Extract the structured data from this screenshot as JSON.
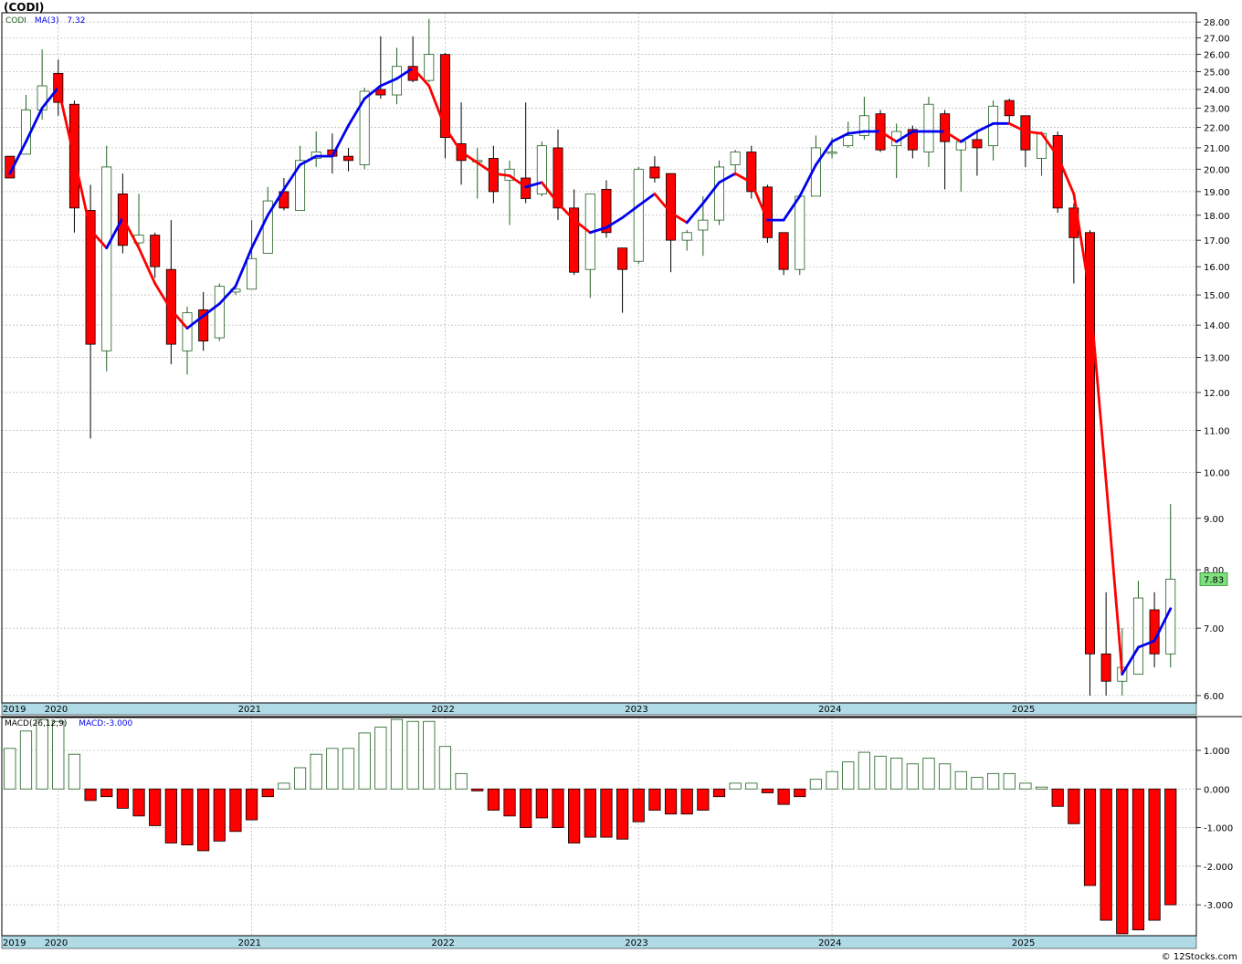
{
  "header": {
    "title": "(CODI)"
  },
  "price_legend": {
    "symbol": "CODI",
    "ma_label": "MA(3)",
    "ma_value": "7.32"
  },
  "macd_legend": {
    "label": "MACD(26,12,9)",
    "value_label": "MACD:-3.000"
  },
  "last_price_label": "7.83",
  "watermark": "© 12Stocks.com",
  "colors": {
    "up": "#1f5f1f",
    "down": "#ff0000",
    "ma_up": "#0000ee",
    "ma_down": "#ff0000",
    "axis_band": "#b0dbe6",
    "grid": "#b4b4b4",
    "last_price_box": "#7ee07e"
  },
  "chart_data": [
    {
      "type": "candlestick",
      "series_name": "CODI",
      "period": "monthly",
      "y_scale": "log",
      "ylim": [
        5.9,
        28.6
      ],
      "y_ticks": [
        "6.00",
        "7.00",
        "8.00",
        "9.00",
        "10.00",
        "11.00",
        "12.00",
        "13.00",
        "14.00",
        "15.00",
        "16.00",
        "17.00",
        "18.00",
        "19.00",
        "20.00",
        "21.00",
        "22.00",
        "23.00",
        "24.00",
        "25.00",
        "26.00",
        "27.00",
        "28.00"
      ],
      "x_labels": [
        {
          "label": "2019",
          "index": -0.4
        },
        {
          "label": "2020",
          "index": 3.0
        },
        {
          "label": "2021",
          "index": 15.0
        },
        {
          "label": "2022",
          "index": 27.0
        },
        {
          "label": "2023",
          "index": 39.0
        },
        {
          "label": "2024",
          "index": 51.0
        },
        {
          "label": "2025",
          "index": 63.0
        }
      ],
      "x_index_range": [
        -0.5,
        73.6
      ],
      "grid": true,
      "candles": [
        [
          20.6,
          19.6,
          21.1,
          21.1
        ],
        [
          20.7,
          22.9,
          23.7,
          20.7
        ],
        [
          22.9,
          24.2,
          26.3,
          22.4
        ],
        [
          24.9,
          23.3,
          25.7,
          22.6
        ],
        [
          23.2,
          18.3,
          23.4,
          17.3
        ],
        [
          18.2,
          13.4,
          19.3,
          10.8
        ],
        [
          13.2,
          20.1,
          21.1,
          12.6
        ],
        [
          18.9,
          16.8,
          19.8,
          16.5
        ],
        [
          16.9,
          17.2,
          18.9,
          16.8
        ],
        [
          17.2,
          16.0,
          17.3,
          15.6
        ],
        [
          15.9,
          13.4,
          17.8,
          12.8
        ],
        [
          13.2,
          14.4,
          14.6,
          12.5
        ],
        [
          14.5,
          13.5,
          15.1,
          13.2
        ],
        [
          13.6,
          15.3,
          15.4,
          13.5
        ],
        [
          15.1,
          15.2,
          15.4,
          15.0
        ],
        [
          15.2,
          16.3,
          17.8,
          15.2
        ],
        [
          16.5,
          18.6,
          19.2,
          16.5
        ],
        [
          19.0,
          18.3,
          19.6,
          18.2
        ],
        [
          18.2,
          20.4,
          21.1,
          18.2
        ],
        [
          20.5,
          20.8,
          21.8,
          20.1
        ],
        [
          20.9,
          20.6,
          21.7,
          19.8
        ],
        [
          20.6,
          20.4,
          21.0,
          19.9
        ],
        [
          20.2,
          23.9,
          24.1,
          20.0
        ],
        [
          24.0,
          23.7,
          27.1,
          23.5
        ],
        [
          23.7,
          25.3,
          26.4,
          23.2
        ],
        [
          25.3,
          24.5,
          27.1,
          24.4
        ],
        [
          24.5,
          26.0,
          28.2,
          24.4
        ],
        [
          26.0,
          21.5,
          26.1,
          20.5
        ],
        [
          21.2,
          20.4,
          23.3,
          19.3
        ],
        [
          20.4,
          20.4,
          21.0,
          18.7
        ],
        [
          20.5,
          19.0,
          21.1,
          18.5
        ],
        [
          19.5,
          20.0,
          20.4,
          17.6
        ],
        [
          19.6,
          18.7,
          23.3,
          18.5
        ],
        [
          18.9,
          21.1,
          21.3,
          18.8
        ],
        [
          21.0,
          18.3,
          21.9,
          17.8
        ],
        [
          18.3,
          15.8,
          19.1,
          15.7
        ],
        [
          15.9,
          18.9,
          18.9,
          14.9
        ],
        [
          19.1,
          17.3,
          19.5,
          17.1
        ],
        [
          16.7,
          15.9,
          16.7,
          14.4
        ],
        [
          16.2,
          20.0,
          20.1,
          16.1
        ],
        [
          20.1,
          19.6,
          20.6,
          19.4
        ],
        [
          19.8,
          17.0,
          19.8,
          15.8
        ],
        [
          17.0,
          17.3,
          17.4,
          16.6
        ],
        [
          17.4,
          17.8,
          18.8,
          16.4
        ],
        [
          17.8,
          20.1,
          20.4,
          17.6
        ],
        [
          20.2,
          20.8,
          20.9,
          19.7
        ],
        [
          20.8,
          19.0,
          21.1,
          18.7
        ],
        [
          19.2,
          17.1,
          19.3,
          16.9
        ],
        [
          17.3,
          15.9,
          17.3,
          15.7
        ],
        [
          15.9,
          18.8,
          18.8,
          15.7
        ],
        [
          18.8,
          21.0,
          21.6,
          18.8
        ],
        [
          20.8,
          20.8,
          21.5,
          20.5
        ],
        [
          21.1,
          21.6,
          22.3,
          21.0
        ],
        [
          21.6,
          22.6,
          23.6,
          21.4
        ],
        [
          22.7,
          20.9,
          22.9,
          20.8
        ],
        [
          21.1,
          21.8,
          22.2,
          19.6
        ],
        [
          21.9,
          20.9,
          22.1,
          20.5
        ],
        [
          20.8,
          23.2,
          23.6,
          20.1
        ],
        [
          22.7,
          21.3,
          22.9,
          19.1
        ],
        [
          20.9,
          21.3,
          21.4,
          19.0
        ],
        [
          21.4,
          21.0,
          21.8,
          19.7
        ],
        [
          21.1,
          23.1,
          23.4,
          20.4
        ],
        [
          23.4,
          22.6,
          23.5,
          22.2
        ],
        [
          22.6,
          20.9,
          22.6,
          20.1
        ],
        [
          20.5,
          21.7,
          21.8,
          19.7
        ],
        [
          21.6,
          18.3,
          21.8,
          18.1
        ],
        [
          18.3,
          17.1,
          18.5,
          15.4
        ],
        [
          17.3,
          6.6,
          17.4,
          6.0
        ],
        [
          6.6,
          6.2,
          7.6,
          6.0
        ],
        [
          6.2,
          6.4,
          7.0,
          6.0
        ],
        [
          6.3,
          7.5,
          7.8,
          6.3
        ],
        [
          7.3,
          6.6,
          7.6,
          6.4
        ],
        [
          6.6,
          7.83,
          9.3,
          6.4
        ]
      ],
      "ma": {
        "name": "MA(3)",
        "values": [
          19.8,
          21.3,
          23.0,
          24.1,
          20.5,
          17.4,
          16.7,
          17.9,
          16.7,
          15.4,
          14.5,
          13.9,
          14.3,
          14.7,
          15.3,
          16.7,
          18.0,
          19.1,
          20.2,
          20.6,
          20.6,
          22.1,
          23.5,
          24.2,
          24.6,
          25.2,
          24.2,
          22.0,
          20.8,
          20.3,
          19.8,
          19.7,
          19.2,
          19.4,
          18.5,
          17.8,
          17.3,
          17.5,
          17.9,
          18.4,
          18.9,
          18.1,
          17.7,
          18.5,
          19.4,
          19.8,
          19.4,
          17.8,
          17.8,
          18.8,
          20.2,
          21.3,
          21.7,
          21.8,
          21.8,
          21.3,
          21.8,
          21.8,
          21.8,
          21.3,
          21.8,
          22.2,
          22.2,
          21.8,
          21.7,
          20.6,
          18.9,
          15.0,
          9.8,
          6.3,
          6.7,
          6.8,
          7.32
        ]
      }
    },
    {
      "type": "bar",
      "series_name": "MACD(26,12,9)",
      "ylim": [
        -3.8,
        1.85
      ],
      "y_ticks": [
        "1.000",
        "0.000",
        "-1.000",
        "-2.000",
        "-3.000"
      ],
      "x_labels": [
        "2019",
        "2020",
        "2021",
        "2022",
        "2023",
        "2024",
        "2025"
      ],
      "values": [
        1.05,
        1.5,
        1.8,
        1.75,
        0.9,
        -0.3,
        -0.2,
        -0.5,
        -0.7,
        -0.95,
        -1.4,
        -1.45,
        -1.6,
        -1.35,
        -1.1,
        -0.8,
        -0.2,
        0.15,
        0.55,
        0.9,
        1.05,
        1.05,
        1.45,
        1.6,
        1.8,
        1.75,
        1.75,
        1.1,
        0.4,
        -0.05,
        -0.55,
        -0.7,
        -1.0,
        -0.75,
        -1.0,
        -1.4,
        -1.25,
        -1.25,
        -1.3,
        -0.85,
        -0.55,
        -0.65,
        -0.65,
        -0.55,
        -0.2,
        0.15,
        0.15,
        -0.1,
        -0.4,
        -0.2,
        0.25,
        0.45,
        0.7,
        0.95,
        0.85,
        0.8,
        0.65,
        0.8,
        0.65,
        0.45,
        0.3,
        0.4,
        0.4,
        0.15,
        0.05,
        -0.45,
        -0.9,
        -2.5,
        -3.4,
        -3.75,
        -3.65,
        -3.4,
        -3.0
      ]
    }
  ]
}
